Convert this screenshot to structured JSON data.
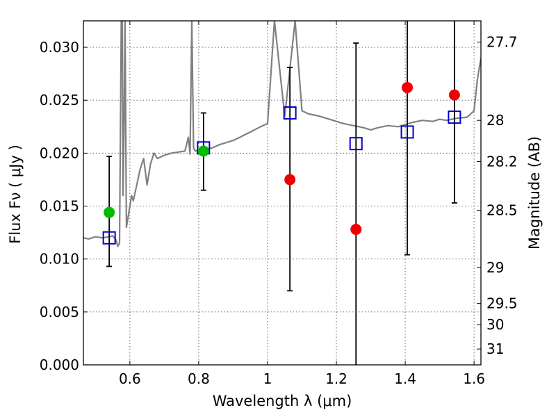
{
  "chart_data": {
    "type": "scatter",
    "xlabel": "Wavelength  λ (μm)",
    "ylabel": "Flux  Fν  ( μJy )",
    "ylabel_right": "Magnitude (AB)",
    "xlim": [
      0.465,
      1.62
    ],
    "ylim": [
      0.0,
      0.0325
    ],
    "grid": true,
    "x_ticks": [
      0.6,
      0.8,
      1.0,
      1.2,
      1.4,
      1.6
    ],
    "x_tick_labels": [
      "0.6",
      "0.8",
      "1",
      "1.2",
      "1.4",
      "1.6"
    ],
    "y_ticks": [
      0.0,
      0.005,
      0.01,
      0.015,
      0.02,
      0.025,
      0.03
    ],
    "y_tick_labels": [
      "0.000",
      "0.005",
      "0.010",
      "0.015",
      "0.020",
      "0.025",
      "0.030"
    ],
    "right_ticks": [
      {
        "label": "27.7",
        "flux": 0.0305
      },
      {
        "label": "28",
        "flux": 0.0231
      },
      {
        "label": "28.2",
        "flux": 0.0192
      },
      {
        "label": "28.5",
        "flux": 0.0146
      },
      {
        "label": "29",
        "flux": 0.0092
      },
      {
        "label": "29.5",
        "flux": 0.0058
      },
      {
        "label": "30",
        "flux": 0.0038
      },
      {
        "label": "31",
        "flux": 0.0015
      }
    ],
    "series": [
      {
        "name": "model spectrum",
        "kind": "line",
        "color": "#808080",
        "x": [
          0.465,
          0.48,
          0.5,
          0.52,
          0.54,
          0.55,
          0.56,
          0.565,
          0.57,
          0.575,
          0.578,
          0.58,
          0.583,
          0.586,
          0.59,
          0.595,
          0.6,
          0.605,
          0.61,
          0.62,
          0.63,
          0.64,
          0.65,
          0.66,
          0.67,
          0.68,
          0.7,
          0.72,
          0.74,
          0.76,
          0.77,
          0.775,
          0.78,
          0.785,
          0.79,
          0.8,
          0.82,
          0.84,
          0.86,
          0.88,
          0.9,
          0.92,
          0.95,
          0.98,
          1.0,
          1.02,
          1.05,
          1.08,
          1.1,
          1.12,
          1.15,
          1.18,
          1.2,
          1.22,
          1.25,
          1.28,
          1.3,
          1.32,
          1.35,
          1.38,
          1.4,
          1.42,
          1.45,
          1.48,
          1.5,
          1.52,
          1.55,
          1.58,
          1.6,
          1.61,
          1.62
        ],
        "y": [
          0.012,
          0.0119,
          0.0121,
          0.012,
          0.0121,
          0.0122,
          0.0118,
          0.0112,
          0.0115,
          0.0325,
          0.0325,
          0.016,
          0.022,
          0.0325,
          0.013,
          0.014,
          0.015,
          0.016,
          0.0155,
          0.017,
          0.0185,
          0.0195,
          0.017,
          0.019,
          0.02,
          0.0195,
          0.0198,
          0.02,
          0.0201,
          0.0202,
          0.0215,
          0.0199,
          0.0325,
          0.0205,
          0.0202,
          0.0203,
          0.0204,
          0.0205,
          0.0208,
          0.021,
          0.0212,
          0.0215,
          0.022,
          0.0225,
          0.0228,
          0.0325,
          0.0235,
          0.0325,
          0.024,
          0.0237,
          0.0235,
          0.0232,
          0.023,
          0.0228,
          0.0226,
          0.0224,
          0.0222,
          0.0224,
          0.0226,
          0.0225,
          0.0227,
          0.0229,
          0.0231,
          0.023,
          0.0232,
          0.0231,
          0.0233,
          0.0234,
          0.024,
          0.027,
          0.029
        ]
      },
      {
        "name": "model photometry",
        "kind": "open-square",
        "color": "#0000cc",
        "x": [
          0.54,
          0.814,
          1.065,
          1.257,
          1.406,
          1.543
        ],
        "y": [
          0.012,
          0.0205,
          0.0238,
          0.0209,
          0.022,
          0.0234
        ]
      },
      {
        "name": "detections",
        "kind": "filled-circle",
        "color": "#00bb00",
        "x": [
          0.54,
          0.814
        ],
        "y": [
          0.0144,
          0.0202
        ]
      },
      {
        "name": "non-detections",
        "kind": "filled-circle",
        "color": "#ee0000",
        "x": [
          1.065,
          1.257,
          1.406,
          1.543
        ],
        "y": [
          0.0175,
          0.0128,
          0.0262,
          0.0255
        ]
      },
      {
        "name": "error bars",
        "kind": "errorbar",
        "color": "#000000",
        "x": [
          0.54,
          0.814,
          1.065,
          1.257,
          1.406,
          1.543
        ],
        "ylow": [
          0.0093,
          0.0165,
          0.007,
          0.0,
          0.0104,
          0.0153
        ],
        "yhigh": [
          0.0197,
          0.0238,
          0.0281,
          0.0304,
          0.0325,
          0.0325
        ],
        "caps_low": [
          true,
          true,
          true,
          false,
          true,
          true
        ],
        "caps_high": [
          true,
          true,
          true,
          true,
          false,
          false
        ]
      }
    ]
  }
}
